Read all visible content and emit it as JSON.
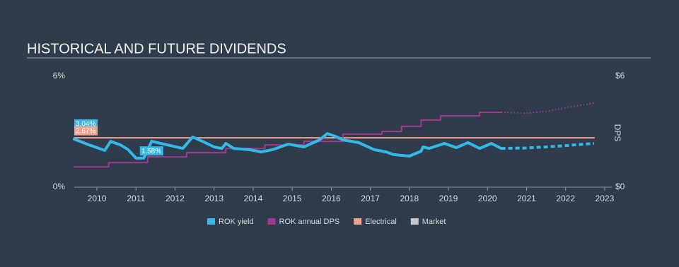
{
  "chart_data": {
    "type": "line",
    "title": "HISTORICAL AND FUTURE DIVIDENDS",
    "y2_label": "DPS",
    "xlim": [
      2009.42,
      2022.73
    ],
    "xticks": [
      2010,
      2011,
      2012,
      2013,
      2014,
      2015,
      2016,
      2017,
      2018,
      2019,
      2020,
      2021,
      2022,
      2023
    ],
    "ylim": [
      0,
      6
    ],
    "yticks": [
      {
        "value": 0,
        "label": "0%"
      },
      {
        "value": 6,
        "label": "6%"
      }
    ],
    "y2lim": [
      0,
      6
    ],
    "y2ticks": [
      {
        "value": 0,
        "label": "$0"
      },
      {
        "value": 6,
        "label": "$6"
      }
    ],
    "series": [
      {
        "name": "ROK yield",
        "color": "#35b8e8",
        "x": [
          2009.42,
          2009.8,
          2010.2,
          2010.35,
          2010.6,
          2010.8,
          2011.0,
          2011.2,
          2011.4,
          2011.8,
          2012.2,
          2012.45,
          2012.7,
          2013.0,
          2013.2,
          2013.3,
          2013.5,
          2013.9,
          2014.2,
          2014.5,
          2014.9,
          2015.3,
          2015.7,
          2015.9,
          2016.1,
          2016.3,
          2016.7,
          2017.1,
          2017.4,
          2017.6,
          2018.0,
          2018.3,
          2018.35,
          2018.5,
          2018.9,
          2019.2,
          2019.5,
          2019.8,
          2020.1,
          2020.35
        ],
        "values": [
          2.6,
          2.29,
          1.99,
          2.48,
          2.29,
          2.03,
          1.57,
          1.57,
          2.48,
          2.29,
          2.1,
          2.71,
          2.48,
          2.18,
          2.1,
          2.37,
          2.1,
          2.03,
          1.91,
          2.03,
          2.33,
          2.18,
          2.56,
          2.9,
          2.75,
          2.56,
          2.41,
          2.03,
          1.91,
          1.76,
          1.68,
          1.95,
          2.18,
          2.1,
          2.37,
          2.14,
          2.41,
          2.1,
          2.37,
          2.1
        ],
        "forecast_x": [
          2020.35,
          2021.0,
          2021.5,
          2022.0,
          2022.73
        ],
        "forecast_values": [
          2.1,
          2.12,
          2.18,
          2.25,
          2.37
        ]
      },
      {
        "name": "ROK annual DPS",
        "color": "#a3398f",
        "axis": "y2",
        "x": [
          2009.42,
          2010.3,
          2010.3,
          2011.3,
          2011.3,
          2012.3,
          2012.3,
          2013.3,
          2013.3,
          2014.3,
          2014.3,
          2015.3,
          2015.3,
          2016.3,
          2016.3,
          2017.3,
          2017.3,
          2017.8,
          2017.8,
          2018.3,
          2018.3,
          2018.8,
          2018.8,
          2019.8,
          2019.8,
          2020.35
        ],
        "values": [
          1.1,
          1.1,
          1.33,
          1.33,
          1.64,
          1.64,
          1.87,
          1.87,
          2.1,
          2.1,
          2.29,
          2.29,
          2.48,
          2.48,
          2.87,
          2.87,
          3.02,
          3.02,
          3.29,
          3.29,
          3.63,
          3.63,
          3.86,
          3.86,
          4.05,
          4.05
        ],
        "forecast_x": [
          2020.35,
          2021.0,
          2021.5,
          2022.0,
          2022.73
        ],
        "forecast_values": [
          4.05,
          4.0,
          4.1,
          4.3,
          4.55
        ]
      },
      {
        "name": "Electrical",
        "color": "#f0a290",
        "x": [
          2009.42,
          2022.73
        ],
        "values": [
          2.67,
          2.67
        ]
      },
      {
        "name": "Market",
        "color": "#c8c8c8",
        "x": [],
        "values": []
      }
    ],
    "annotations": [
      {
        "label": "3.04%",
        "value": 3.04,
        "x": 2009.42,
        "color": "#35b8e8"
      },
      {
        "label": "2.67%",
        "value": 2.67,
        "x": 2009.42,
        "color": "#f0a290"
      },
      {
        "label": "1.58%",
        "value": 1.58,
        "x": 2011.1,
        "color": "#35b8e8"
      }
    ]
  }
}
